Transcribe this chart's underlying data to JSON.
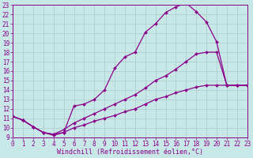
{
  "xlabel": "Windchill (Refroidissement éolien,°C)",
  "xlim": [
    0,
    23
  ],
  "ylim": [
    9,
    23
  ],
  "xticks": [
    0,
    1,
    2,
    3,
    4,
    5,
    6,
    7,
    8,
    9,
    10,
    11,
    12,
    13,
    14,
    15,
    16,
    17,
    18,
    19,
    20,
    21,
    22,
    23
  ],
  "yticks": [
    9,
    10,
    11,
    12,
    13,
    14,
    15,
    16,
    17,
    18,
    19,
    20,
    21,
    22,
    23
  ],
  "bg_color": "#c8e8e8",
  "grid_color": "#b0d0d0",
  "line_color": "#8b008b",
  "line_width": 0.9,
  "marker": "D",
  "marker_size": 2.0,
  "series": [
    {
      "x": [
        0,
        1,
        2,
        3,
        4,
        5,
        6,
        7,
        8,
        9,
        10,
        11,
        12,
        13,
        14,
        15,
        16,
        17,
        18,
        19,
        20,
        21,
        22,
        23
      ],
      "y": [
        11.2,
        10.8,
        10.1,
        9.5,
        9.2,
        9.5,
        12.3,
        12.5,
        13.0,
        14.0,
        16.3,
        17.5,
        18.0,
        20.1,
        21.0,
        22.2,
        22.8,
        23.2,
        22.3,
        21.2,
        19.1,
        14.5,
        14.5,
        14.5
      ]
    },
    {
      "x": [
        0,
        1,
        2,
        3,
        4,
        5,
        6,
        7,
        8,
        9,
        10,
        11,
        12,
        13,
        14,
        15,
        16,
        17,
        18,
        19,
        20,
        21,
        22,
        23
      ],
      "y": [
        11.2,
        10.8,
        10.1,
        9.5,
        9.3,
        9.8,
        10.5,
        11.0,
        11.5,
        12.0,
        12.5,
        13.0,
        13.5,
        14.2,
        15.0,
        15.5,
        16.2,
        17.0,
        17.8,
        18.0,
        18.0,
        14.5,
        14.5,
        14.5
      ]
    },
    {
      "x": [
        0,
        1,
        2,
        3,
        4,
        5,
        6,
        7,
        8,
        9,
        10,
        11,
        12,
        13,
        14,
        15,
        16,
        17,
        18,
        19,
        20,
        21,
        22,
        23
      ],
      "y": [
        11.2,
        10.8,
        10.1,
        9.5,
        9.3,
        9.5,
        10.0,
        10.3,
        10.7,
        11.0,
        11.3,
        11.7,
        12.0,
        12.5,
        13.0,
        13.3,
        13.7,
        14.0,
        14.3,
        14.5,
        14.5,
        14.5,
        14.5,
        14.5
      ]
    }
  ],
  "tick_fontsize": 5.5,
  "label_fontsize": 6.0
}
